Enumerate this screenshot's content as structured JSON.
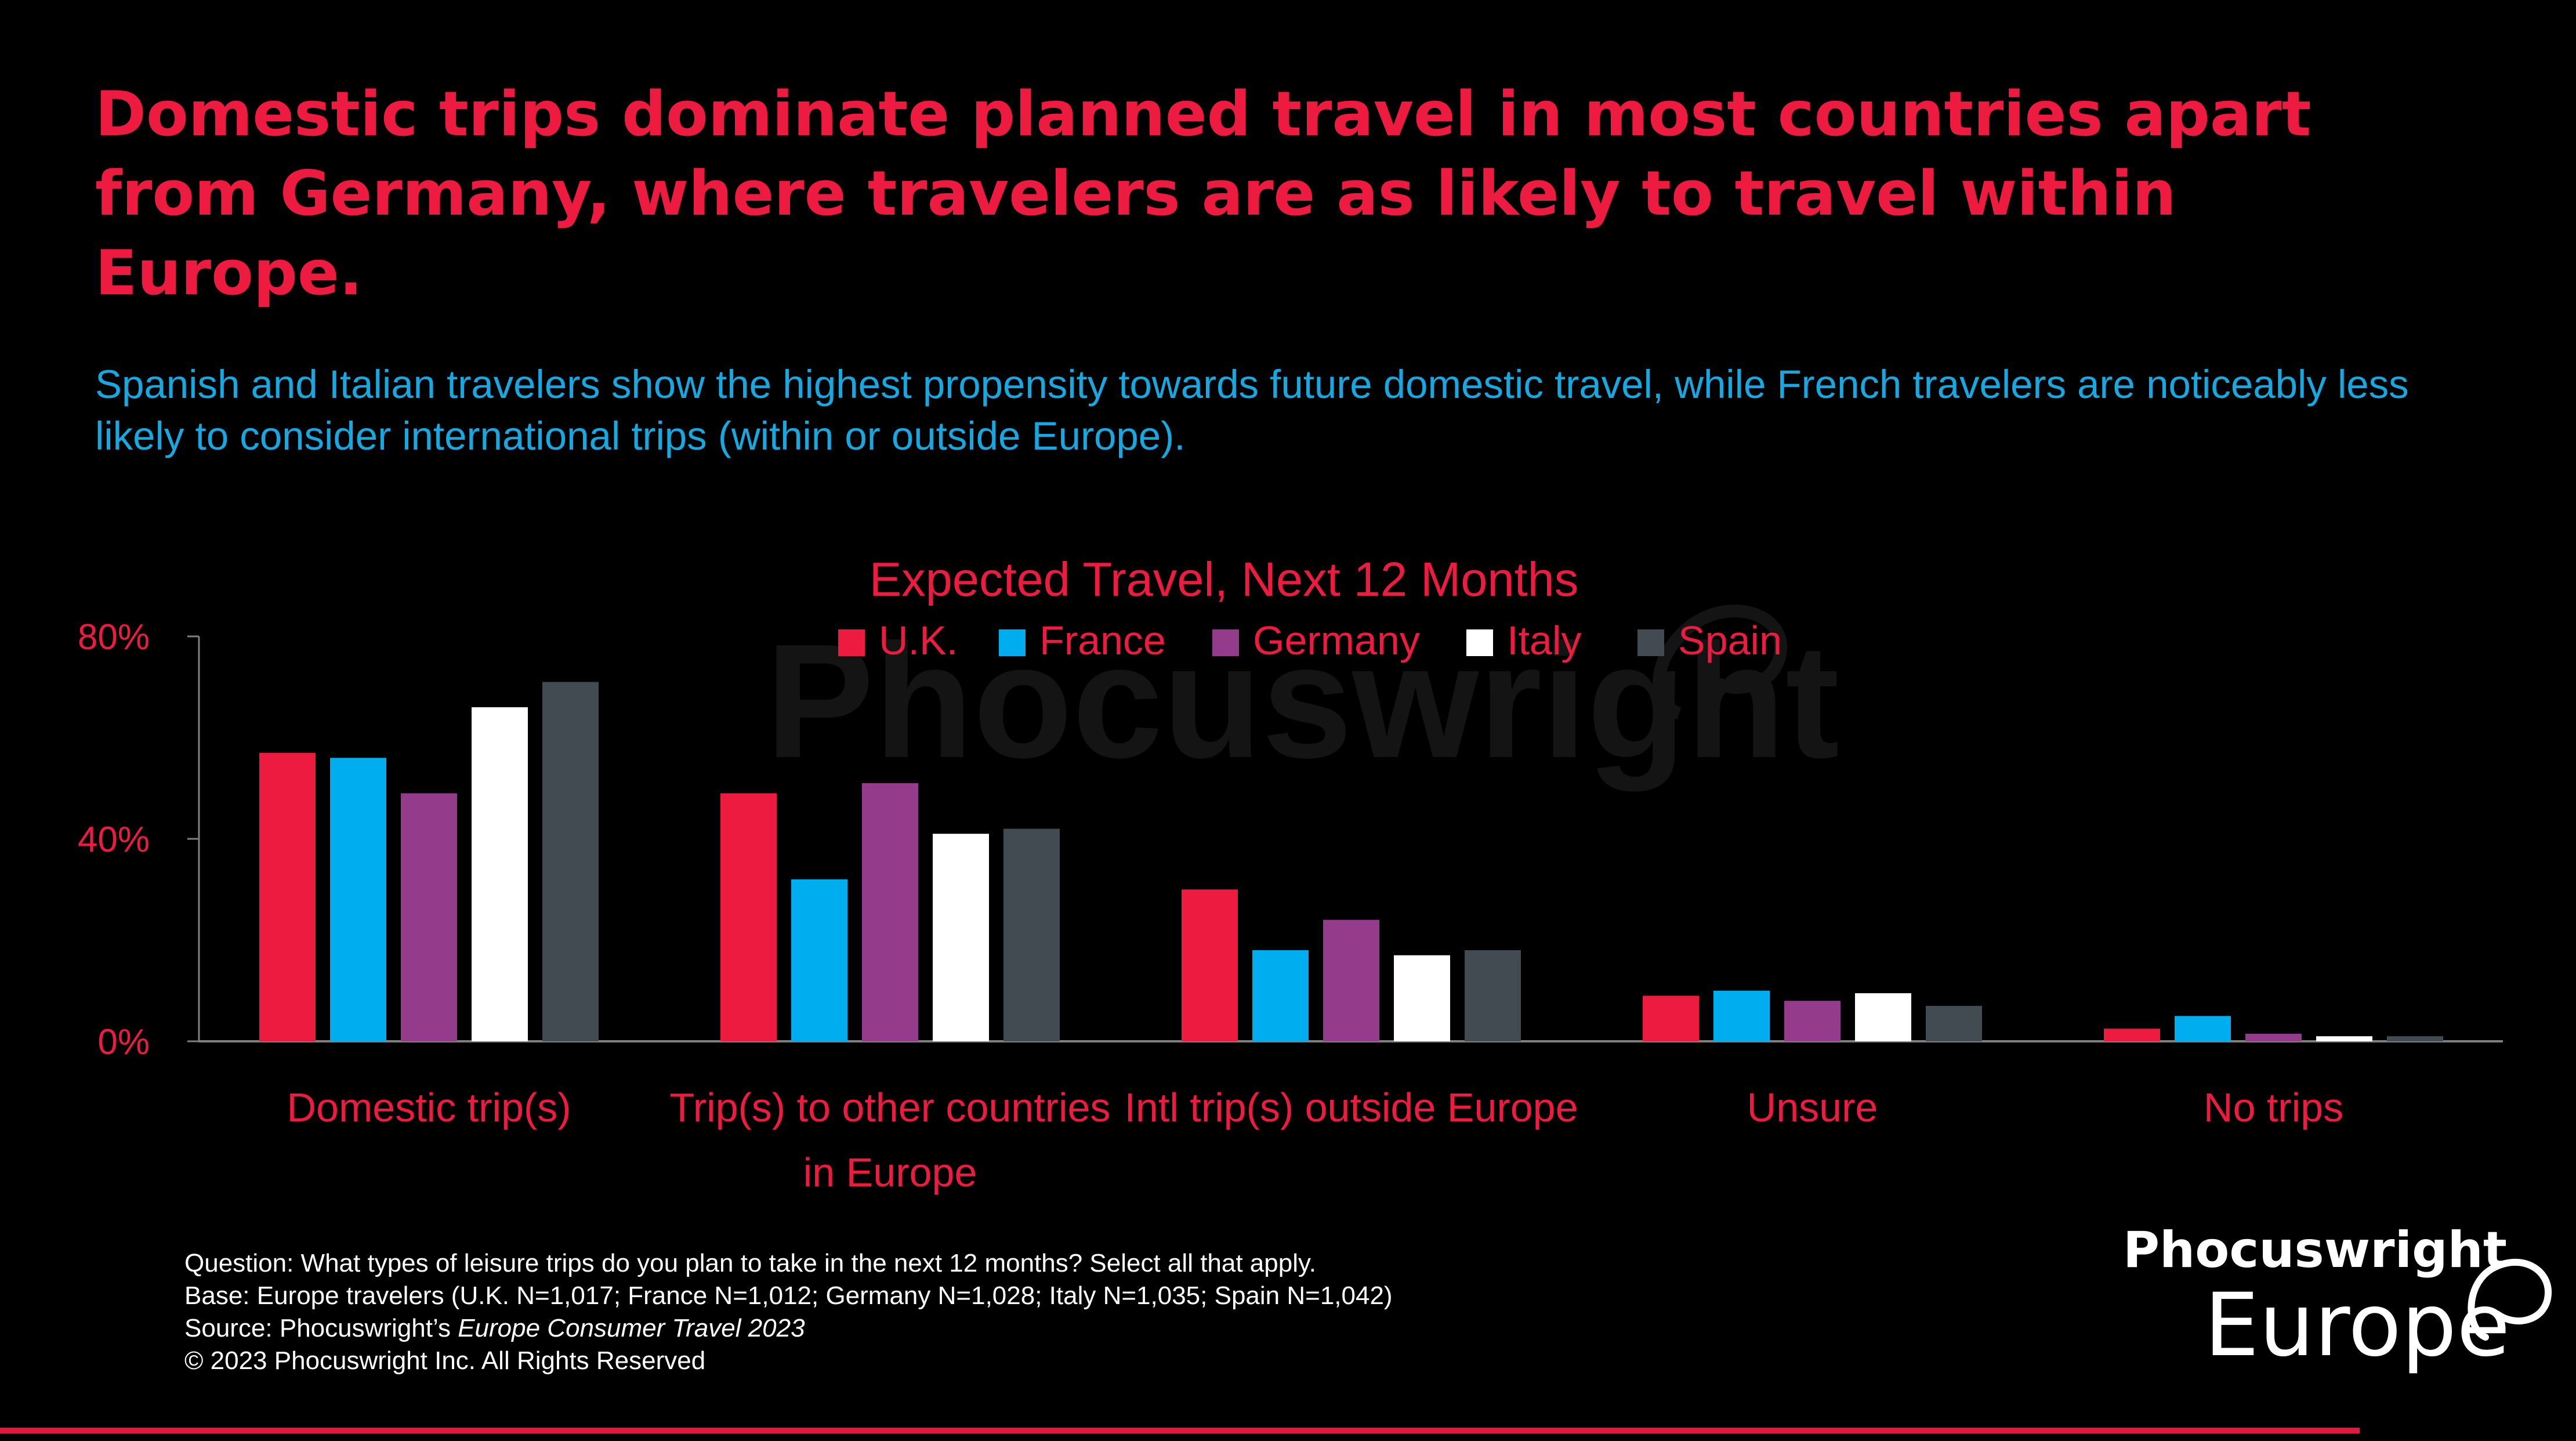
{
  "headline": "Domestic trips dominate planned travel in most countries apart from Germany, where travelers are as likely to travel within Europe.",
  "subtitle": "Spanish and Italian travelers show the highest propensity towards future domestic travel, while French travelers are noticeably less likely to consider international trips (within or outside Europe).",
  "watermark": "Phocuswright",
  "colors": {
    "accent": "#ee1b40",
    "subtitle": "#16a8e0",
    "background": "#000000"
  },
  "chart_data": {
    "type": "bar",
    "title": "Expected Travel, Next 12 Months",
    "categories": [
      "Domestic trip(s)",
      "Trip(s) to other countries in Europe",
      "Intl trip(s) outside Europe",
      "Unsure",
      "No trips"
    ],
    "category_lines": [
      [
        "Domestic trip(s)"
      ],
      [
        "Trip(s) to other countries",
        "in Europe"
      ],
      [
        "Intl trip(s) outside Europe"
      ],
      [
        "Unsure"
      ],
      [
        "No trips"
      ]
    ],
    "series": [
      {
        "name": "U.K.",
        "color": "#ee1b40",
        "values": [
          57,
          49,
          30,
          9,
          2.5
        ]
      },
      {
        "name": "France",
        "color": "#00aeef",
        "values": [
          56,
          32,
          18,
          10,
          5
        ]
      },
      {
        "name": "Germany",
        "color": "#943b8c",
        "values": [
          49,
          51,
          24,
          8,
          1.5
        ]
      },
      {
        "name": "Italy",
        "color": "#ffffff",
        "values": [
          66,
          41,
          17,
          9.5,
          1
        ]
      },
      {
        "name": "Spain",
        "color": "#424a52",
        "values": [
          71,
          42,
          18,
          7,
          1
        ]
      }
    ],
    "ylim": [
      0,
      80
    ],
    "yticks": [
      0,
      40,
      80
    ],
    "ytick_labels": [
      "0%",
      "40%",
      "80%"
    ],
    "xlabel": "",
    "ylabel": "",
    "legend": "top-center",
    "grid": false
  },
  "footer": {
    "question": "Question: What types of leisure trips do you plan to take in the next 12 months? Select all that apply.",
    "base": "Base: Europe travelers (U.K. N=1,017; France N=1,012; Germany N=1,028; Italy N=1,035; Spain N=1,042)",
    "source_prefix": "Source: Phocuswright’s ",
    "source_title": "Europe Consumer Travel 2023",
    "copyright": "© 2023 Phocuswright Inc. All Rights Reserved"
  },
  "logo": {
    "line1": "Phocuswright",
    "line2": "Europe"
  }
}
